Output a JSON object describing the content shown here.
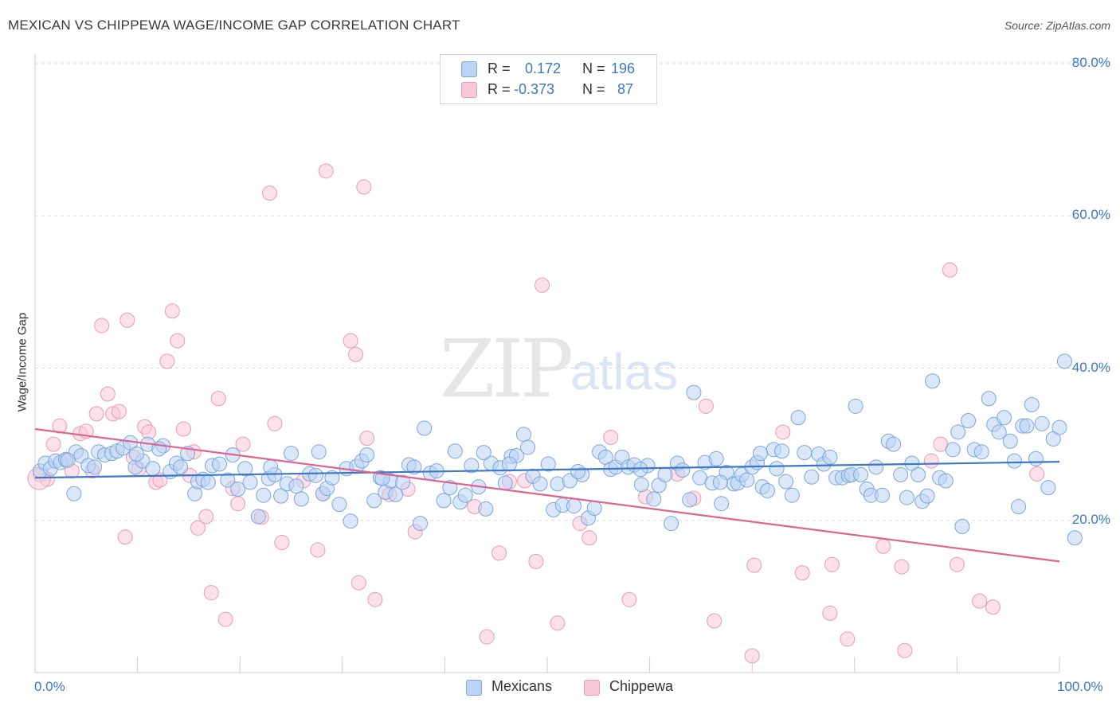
{
  "title": "MEXICAN VS CHIPPEWA WAGE/INCOME GAP CORRELATION CHART",
  "source": "Source: ZipAtlas.com",
  "watermark": {
    "zip": "ZIP",
    "atlas": "atlas"
  },
  "colors": {
    "blue": "#3b78c8",
    "blue_fill": "#bcd4f3",
    "blue_stroke": "#7aa6dd",
    "pink": "#e0648f",
    "pink_fill": "#f9c8d8",
    "pink_stroke": "#e99ab5"
  },
  "legend": {
    "rows": [
      {
        "r_label": "R =",
        "r_value": "0.172",
        "n_label": "N =",
        "n_value": "196"
      },
      {
        "r_label": "R =",
        "r_value": "-0.373",
        "n_label": "N =",
        "n_value": "87"
      }
    ]
  },
  "bottom_legend": [
    "Mexicans",
    "Chippewa"
  ],
  "chart_data": {
    "type": "scatter",
    "title": "MEXICAN VS CHIPPEWA WAGE/INCOME GAP CORRELATION CHART",
    "xlabel": "",
    "ylabel": "Wage/Income Gap",
    "xlim": [
      0,
      100
    ],
    "ylim": [
      0,
      80
    ],
    "x_tick_labels": [
      "0.0%",
      "100.0%"
    ],
    "y_ticks": [
      20,
      40,
      60,
      80
    ],
    "y_tick_labels": [
      "20.0%",
      "40.0%",
      "60.0%",
      "80.0%"
    ],
    "grid": "horizontal dashed",
    "legend_position": "top-center",
    "series": [
      {
        "name": "Mexicans",
        "color": "#3b78c8",
        "trend": {
          "x": [
            0,
            100
          ],
          "y": [
            25.6,
            27.7
          ]
        },
        "points": [
          [
            0.5,
            26.5
          ],
          [
            1.0,
            27.5
          ],
          [
            1.5,
            26.8
          ],
          [
            2.0,
            27.8
          ],
          [
            2.5,
            27.6
          ],
          [
            3.0,
            28.0
          ],
          [
            3.8,
            23.5
          ],
          [
            4.0,
            29.0
          ],
          [
            4.5,
            28.5
          ],
          [
            5.2,
            27.2
          ],
          [
            5.8,
            27.0
          ],
          [
            6.2,
            29.0
          ],
          [
            6.8,
            28.6
          ],
          [
            7.5,
            28.8
          ],
          [
            8.0,
            29.1
          ],
          [
            8.6,
            29.5
          ],
          [
            9.3,
            30.2
          ],
          [
            9.8,
            27.0
          ],
          [
            10.5,
            27.8
          ],
          [
            11.0,
            30.0
          ],
          [
            11.5,
            26.8
          ],
          [
            12.5,
            29.8
          ],
          [
            13.2,
            26.4
          ],
          [
            13.8,
            27.5
          ],
          [
            14.2,
            27.0
          ],
          [
            14.9,
            28.8
          ],
          [
            15.6,
            23.5
          ],
          [
            15.9,
            25.1
          ],
          [
            16.4,
            25.4
          ],
          [
            16.9,
            25.0
          ],
          [
            17.3,
            27.2
          ],
          [
            18.0,
            27.4
          ],
          [
            18.8,
            25.3
          ],
          [
            19.3,
            28.6
          ],
          [
            19.8,
            24.1
          ],
          [
            20.5,
            26.8
          ],
          [
            21.0,
            25.0
          ],
          [
            21.8,
            20.5
          ],
          [
            22.3,
            23.3
          ],
          [
            22.8,
            25.5
          ],
          [
            23.4,
            26.0
          ],
          [
            24.0,
            23.2
          ],
          [
            24.6,
            24.8
          ],
          [
            25.0,
            28.8
          ],
          [
            25.5,
            24.5
          ],
          [
            26.0,
            22.8
          ],
          [
            26.8,
            26.1
          ],
          [
            27.4,
            25.9
          ],
          [
            27.7,
            29.0
          ],
          [
            28.1,
            23.5
          ],
          [
            28.5,
            24.2
          ],
          [
            29.0,
            25.6
          ],
          [
            29.7,
            22.1
          ],
          [
            30.4,
            26.8
          ],
          [
            30.8,
            19.9
          ],
          [
            31.4,
            27.1
          ],
          [
            31.9,
            27.8
          ],
          [
            32.4,
            28.6
          ],
          [
            33.1,
            22.6
          ],
          [
            33.7,
            25.6
          ],
          [
            34.2,
            23.7
          ],
          [
            34.7,
            25.2
          ],
          [
            35.2,
            23.4
          ],
          [
            35.9,
            25.0
          ],
          [
            36.5,
            27.3
          ],
          [
            37.0,
            27.0
          ],
          [
            37.6,
            19.6
          ],
          [
            38.0,
            32.1
          ],
          [
            38.6,
            26.2
          ],
          [
            39.2,
            26.5
          ],
          [
            39.9,
            22.6
          ],
          [
            40.5,
            24.3
          ],
          [
            41.0,
            29.1
          ],
          [
            41.5,
            22.4
          ],
          [
            42.0,
            23.3
          ],
          [
            42.6,
            27.2
          ],
          [
            43.3,
            24.4
          ],
          [
            44.0,
            21.5
          ],
          [
            44.5,
            27.5
          ],
          [
            45.4,
            26.9
          ],
          [
            45.9,
            24.9
          ],
          [
            46.5,
            28.4
          ],
          [
            47.0,
            28.5
          ],
          [
            47.7,
            31.3
          ],
          [
            48.1,
            29.6
          ],
          [
            48.6,
            25.8
          ],
          [
            49.3,
            24.8
          ],
          [
            50.1,
            27.4
          ],
          [
            50.6,
            21.4
          ],
          [
            51.0,
            24.8
          ],
          [
            51.5,
            22.0
          ],
          [
            52.2,
            25.2
          ],
          [
            52.6,
            21.9
          ],
          [
            53.4,
            26.0
          ],
          [
            54.0,
            20.3
          ],
          [
            54.6,
            21.6
          ],
          [
            55.1,
            29.0
          ],
          [
            55.7,
            28.3
          ],
          [
            56.2,
            26.7
          ],
          [
            56.7,
            27.0
          ],
          [
            57.3,
            28.3
          ],
          [
            57.9,
            27.0
          ],
          [
            58.5,
            27.3
          ],
          [
            59.2,
            24.7
          ],
          [
            59.8,
            27.2
          ],
          [
            60.4,
            22.8
          ],
          [
            60.9,
            24.6
          ],
          [
            61.5,
            26.0
          ],
          [
            62.1,
            19.6
          ],
          [
            62.7,
            27.5
          ],
          [
            63.2,
            26.6
          ],
          [
            63.9,
            22.7
          ],
          [
            64.3,
            36.8
          ],
          [
            64.9,
            25.6
          ],
          [
            65.4,
            27.6
          ],
          [
            66.1,
            24.9
          ],
          [
            66.5,
            28.1
          ],
          [
            67.0,
            22.2
          ],
          [
            67.5,
            26.3
          ],
          [
            68.2,
            24.8
          ],
          [
            68.6,
            24.9
          ],
          [
            69.0,
            26.0
          ],
          [
            69.5,
            25.3
          ],
          [
            70.0,
            27.0
          ],
          [
            70.5,
            27.6
          ],
          [
            71.0,
            24.4
          ],
          [
            71.5,
            23.9
          ],
          [
            72.1,
            29.3
          ],
          [
            72.4,
            26.8
          ],
          [
            72.9,
            29.1
          ],
          [
            73.3,
            25.1
          ],
          [
            73.9,
            23.3
          ],
          [
            74.5,
            33.5
          ],
          [
            75.1,
            28.9
          ],
          [
            75.8,
            25.7
          ],
          [
            76.5,
            28.7
          ],
          [
            77.0,
            27.4
          ],
          [
            77.6,
            28.3
          ],
          [
            78.2,
            25.6
          ],
          [
            78.8,
            25.6
          ],
          [
            79.4,
            25.9
          ],
          [
            79.7,
            26.0
          ],
          [
            80.1,
            35.0
          ],
          [
            80.6,
            26.0
          ],
          [
            81.2,
            24.1
          ],
          [
            81.6,
            23.3
          ],
          [
            82.1,
            27.0
          ],
          [
            82.7,
            23.3
          ],
          [
            83.3,
            30.4
          ],
          [
            83.8,
            30.0
          ],
          [
            84.5,
            26.0
          ],
          [
            85.1,
            23.0
          ],
          [
            85.6,
            27.5
          ],
          [
            86.2,
            26.0
          ],
          [
            86.6,
            22.5
          ],
          [
            87.1,
            23.2
          ],
          [
            87.6,
            38.3
          ],
          [
            88.3,
            25.6
          ],
          [
            88.9,
            25.2
          ],
          [
            89.6,
            29.3
          ],
          [
            90.1,
            31.6
          ],
          [
            90.5,
            19.2
          ],
          [
            91.1,
            33.1
          ],
          [
            91.7,
            29.3
          ],
          [
            92.4,
            29.0
          ],
          [
            93.1,
            36.0
          ],
          [
            93.6,
            32.6
          ],
          [
            94.1,
            31.6
          ],
          [
            94.6,
            33.5
          ],
          [
            95.2,
            30.4
          ],
          [
            95.6,
            27.8
          ],
          [
            96.0,
            21.8
          ],
          [
            96.4,
            32.4
          ],
          [
            96.8,
            32.4
          ],
          [
            97.3,
            35.2
          ],
          [
            97.7,
            28.1
          ],
          [
            98.3,
            32.7
          ],
          [
            98.9,
            24.3
          ],
          [
            99.4,
            30.7
          ],
          [
            100.0,
            32.2
          ],
          [
            100.5,
            40.9
          ],
          [
            101.5,
            17.7
          ],
          [
            3.2,
            27.9
          ],
          [
            9.9,
            28.7
          ],
          [
            12.1,
            29.4
          ],
          [
            23.0,
            27.0
          ],
          [
            33.9,
            25.5
          ],
          [
            43.8,
            28.9
          ],
          [
            46.3,
            27.4
          ],
          [
            53.0,
            26.4
          ],
          [
            59.1,
            26.7
          ],
          [
            66.9,
            25.0
          ],
          [
            70.8,
            28.8
          ]
        ]
      },
      {
        "name": "Chippewa",
        "color": "#e0648f",
        "trend": {
          "x": [
            0,
            100
          ],
          "y": [
            32.0,
            14.6
          ]
        },
        "points": [
          [
            0.5,
            26.0
          ],
          [
            1.2,
            25.4
          ],
          [
            1.8,
            30.0
          ],
          [
            2.4,
            32.4
          ],
          [
            3.0,
            27.9
          ],
          [
            3.6,
            26.5
          ],
          [
            4.4,
            31.4
          ],
          [
            5.0,
            31.7
          ],
          [
            5.6,
            26.5
          ],
          [
            6.0,
            34.0
          ],
          [
            6.5,
            45.6
          ],
          [
            7.1,
            36.6
          ],
          [
            7.6,
            34.0
          ],
          [
            8.2,
            34.3
          ],
          [
            8.8,
            17.8
          ],
          [
            9.0,
            46.3
          ],
          [
            9.6,
            28.3
          ],
          [
            10.1,
            26.7
          ],
          [
            10.7,
            32.3
          ],
          [
            11.1,
            31.6
          ],
          [
            11.8,
            25.0
          ],
          [
            12.2,
            25.3
          ],
          [
            12.9,
            40.9
          ],
          [
            13.4,
            47.5
          ],
          [
            13.9,
            43.6
          ],
          [
            14.5,
            32.0
          ],
          [
            15.1,
            25.9
          ],
          [
            15.5,
            29.0
          ],
          [
            15.9,
            19.0
          ],
          [
            16.7,
            20.5
          ],
          [
            17.2,
            10.5
          ],
          [
            17.9,
            36.0
          ],
          [
            18.6,
            7.0
          ],
          [
            19.3,
            24.2
          ],
          [
            19.8,
            22.2
          ],
          [
            20.3,
            30.0
          ],
          [
            22.1,
            20.4
          ],
          [
            22.9,
            63.0
          ],
          [
            23.4,
            32.7
          ],
          [
            24.1,
            17.1
          ],
          [
            26.2,
            25.2
          ],
          [
            27.6,
            16.1
          ],
          [
            28.1,
            23.5
          ],
          [
            28.4,
            65.9
          ],
          [
            30.8,
            43.6
          ],
          [
            31.3,
            41.8
          ],
          [
            31.6,
            11.8
          ],
          [
            32.1,
            63.8
          ],
          [
            32.4,
            30.8
          ],
          [
            33.2,
            9.6
          ],
          [
            34.6,
            23.4
          ],
          [
            37.1,
            18.5
          ],
          [
            42.9,
            21.8
          ],
          [
            44.1,
            4.7
          ],
          [
            45.3,
            15.7
          ],
          [
            46.3,
            25.1
          ],
          [
            47.8,
            25.2
          ],
          [
            48.9,
            14.6
          ],
          [
            49.5,
            50.9
          ],
          [
            51.0,
            6.5
          ],
          [
            53.2,
            19.6
          ],
          [
            54.1,
            17.7
          ],
          [
            56.2,
            30.9
          ],
          [
            58.0,
            9.6
          ],
          [
            59.6,
            23.1
          ],
          [
            62.7,
            26.1
          ],
          [
            64.3,
            22.9
          ],
          [
            65.5,
            35.0
          ],
          [
            66.3,
            6.8
          ],
          [
            70.0,
            2.2
          ],
          [
            70.2,
            14.1
          ],
          [
            73.0,
            31.6
          ],
          [
            74.9,
            13.1
          ],
          [
            77.6,
            7.8
          ],
          [
            77.8,
            14.2
          ],
          [
            79.3,
            4.4
          ],
          [
            82.8,
            16.6
          ],
          [
            84.6,
            13.9
          ],
          [
            84.9,
            2.9
          ],
          [
            87.5,
            27.8
          ],
          [
            88.4,
            30.0
          ],
          [
            89.3,
            52.9
          ],
          [
            90.0,
            14.2
          ],
          [
            92.2,
            9.4
          ],
          [
            93.5,
            8.6
          ],
          [
            97.8,
            26.1
          ],
          [
            36.4,
            24.1
          ]
        ]
      }
    ]
  }
}
